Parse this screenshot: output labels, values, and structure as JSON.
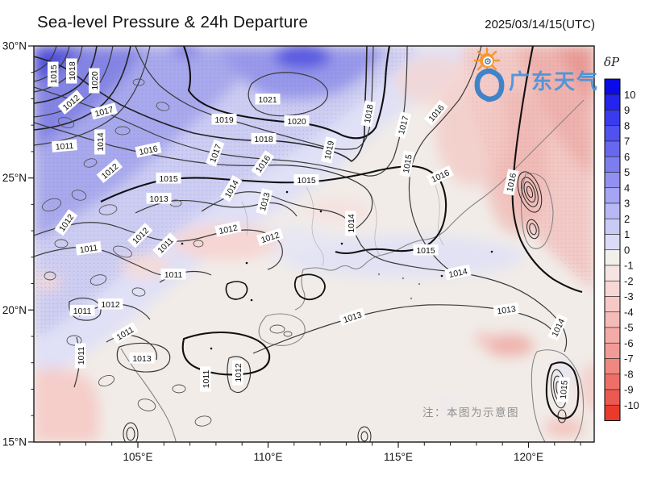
{
  "header": {
    "title": "Sea-level Pressure & 24h Departure",
    "datetime": "2025/03/14/15(UTC)"
  },
  "watermark": {
    "brand": "广东天气"
  },
  "note": {
    "text": "注：本图为示意图"
  },
  "chart_data": {
    "type": "contour_map",
    "title": "Sea-level Pressure & 24h Departure",
    "valid_time": "2025/03/14/15(UTC)",
    "field": "sea-level pressure (hPa) contours with 24-hour pressure departure color shading",
    "axes": {
      "lon": {
        "tick_labels": [
          "105°E",
          "110°E",
          "115°E",
          "120°E"
        ],
        "tick_values": [
          105,
          110,
          115,
          120
        ],
        "range": [
          101.0,
          122.5
        ],
        "minor_step": 1
      },
      "lat": {
        "tick_labels": [
          "30°N",
          "25°N",
          "20°N",
          "15°N"
        ],
        "tick_values": [
          30,
          25,
          20,
          15
        ],
        "range": [
          15,
          30
        ],
        "minor_step": 1
      }
    },
    "colorbar": {
      "label": "δP",
      "tick_values": [
        10,
        9,
        8,
        7,
        6,
        5,
        4,
        3,
        2,
        1,
        0,
        -1,
        -2,
        -3,
        -4,
        -5,
        -6,
        -7,
        -8,
        -9,
        -10
      ],
      "colors": [
        "#0b0be8",
        "#2424ec",
        "#3b3bee",
        "#5151ee",
        "#6767ef",
        "#7d7df0",
        "#9191f1",
        "#a5a5f3",
        "#b8b8f5",
        "#cacaf6",
        "#dbdbf8",
        "#f3f0ec",
        "#f6e4e2",
        "#f7d7d4",
        "#f6c9c6",
        "#f5bbb7",
        "#f4aba7",
        "#f29b96",
        "#f08781",
        "#ee6f68",
        "#ec5950",
        "#e93a2b"
      ]
    },
    "contour_levels": [
      1011,
      1012,
      1013,
      1014,
      1015,
      1016,
      1017,
      1018,
      1019,
      1020,
      1021
    ],
    "contour_unit": "hPa",
    "contour_labels": [
      [
        1015,
        66,
        92,
        -90
      ],
      [
        1018,
        89,
        88,
        -90
      ],
      [
        1020,
        117,
        100,
        -90
      ],
      [
        1012,
        88,
        127,
        -40
      ],
      [
        1017,
        129,
        138,
        -15
      ],
      [
        1014,
        124,
        176,
        -90
      ],
      [
        1011,
        80,
        181,
        -5
      ],
      [
        1016,
        184,
        186,
        -12
      ],
      [
        1012,
        136,
        212,
        -40
      ],
      [
        1015,
        209,
        221,
        0
      ],
      [
        1021,
        332,
        123,
        0
      ],
      [
        1019,
        278,
        148,
        0
      ],
      [
        1020,
        368,
        150,
        0
      ],
      [
        1018,
        327,
        172,
        0
      ],
      [
        1017,
        267,
        190,
        -70
      ],
      [
        1019,
        408,
        186,
        -78
      ],
      [
        1016,
        326,
        203,
        -55
      ],
      [
        1015,
        380,
        223,
        0
      ],
      [
        1018,
        457,
        141,
        -80
      ],
      [
        1017,
        500,
        155,
        -75
      ],
      [
        1016,
        541,
        140,
        -50
      ],
      [
        1015,
        505,
        203,
        -80
      ],
      [
        1016,
        546,
        218,
        -25
      ],
      [
        1016,
        634,
        226,
        -78
      ],
      [
        1014,
        287,
        234,
        -60
      ],
      [
        1013,
        328,
        250,
        -75
      ],
      [
        1014,
        435,
        277,
        -90
      ],
      [
        1012,
        283,
        284,
        -12
      ],
      [
        1012,
        335,
        294,
        -18
      ],
      [
        1012,
        82,
        276,
        -55
      ],
      [
        1011,
        110,
        308,
        -8
      ],
      [
        1012,
        174,
        292,
        -45
      ],
      [
        1011,
        205,
        304,
        -45
      ],
      [
        1011,
        215,
        340,
        0
      ],
      [
        1013,
        197,
        246,
        0
      ],
      [
        1015,
        528,
        310,
        0
      ],
      [
        1014,
        568,
        338,
        -12
      ],
      [
        1013,
        437,
        393,
        -18
      ],
      [
        1013,
        628,
        384,
        -8
      ],
      [
        1014,
        692,
        406,
        -65
      ],
      [
        1011,
        102,
        385,
        0
      ],
      [
        1012,
        137,
        377,
        0
      ],
      [
        1011,
        155,
        413,
        -30
      ],
      [
        1011,
        100,
        441,
        -90
      ],
      [
        1013,
        176,
        444,
        0
      ],
      [
        1011,
        255,
        470,
        -90
      ],
      [
        1012,
        295,
        462,
        -90
      ],
      [
        1015,
        699,
        483,
        -85
      ]
    ]
  }
}
